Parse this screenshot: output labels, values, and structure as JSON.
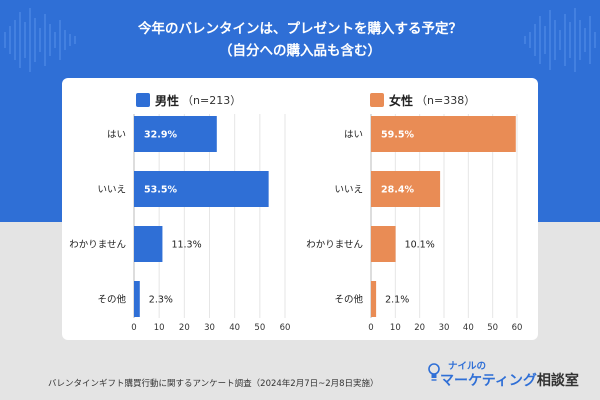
{
  "title": {
    "line1": "今年のバレンタインは、プレゼントを購入する予定？",
    "line2": "（自分への購入品も含む）"
  },
  "footer": {
    "note": "バレンタインギフト購買行動に関するアンケート調査（2024年2月7日~2月8日実施）"
  },
  "logo": {
    "top": "ナイルの",
    "main": "マーケティング",
    "sub": "相談室"
  },
  "colors": {
    "header_blue": "#2f6fd6",
    "male_bar": "#2f6fd6",
    "female_bar": "#e98c55"
  },
  "chart_data": [
    {
      "type": "bar",
      "orientation": "horizontal",
      "title": "男性",
      "n_label": "（n=213）",
      "color": "#2f6fd6",
      "categories": [
        "はい",
        "いいえ",
        "わかりません",
        "その他"
      ],
      "values": [
        32.9,
        53.5,
        11.3,
        2.3
      ],
      "value_labels": [
        "32.9%",
        "53.5%",
        "11.3%",
        "2.3%"
      ],
      "xlim": [
        0,
        60
      ],
      "xticks": [
        0,
        10,
        20,
        30,
        40,
        50,
        60
      ],
      "grid": true
    },
    {
      "type": "bar",
      "orientation": "horizontal",
      "title": "女性",
      "n_label": "（n=338）",
      "color": "#e98c55",
      "categories": [
        "はい",
        "いいえ",
        "わかりません",
        "その他"
      ],
      "values": [
        59.5,
        28.4,
        10.1,
        2.1
      ],
      "value_labels": [
        "59.5%",
        "28.4%",
        "10.1%",
        "2.1%"
      ],
      "xlim": [
        0,
        60
      ],
      "xticks": [
        0,
        10,
        20,
        30,
        40,
        50,
        60
      ],
      "grid": true
    }
  ]
}
